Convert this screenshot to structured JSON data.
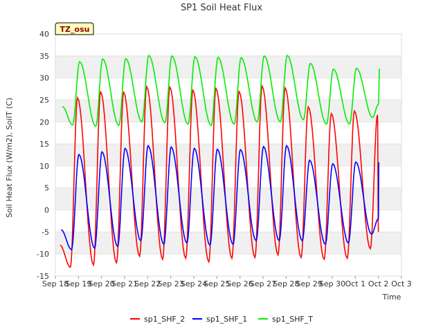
{
  "chart_data": {
    "type": "line",
    "title": "SP1 Soil Heat Flux",
    "xlabel": "Time",
    "ylabel": "Soil Heat Flux (W/m2), SoilT (C)",
    "site_label": "TZ_osu",
    "ylim": [
      -15,
      40
    ],
    "y_ticks": [
      -15,
      -10,
      -5,
      0,
      5,
      10,
      15,
      20,
      25,
      30,
      35,
      40
    ],
    "xlim": [
      0,
      15
    ],
    "x_ticks": [
      0,
      1,
      2,
      3,
      4,
      5,
      6,
      7,
      8,
      9,
      10,
      11,
      12,
      13,
      14,
      15
    ],
    "x_tick_labels": [
      "Sep 18",
      "Sep 19",
      "Sep 20",
      "Sep 21",
      "Sep 22",
      "Sep 23",
      "Sep 24",
      "Sep 25",
      "Sep 26",
      "Sep 27",
      "Sep 28",
      "Sep 29",
      "Sep 30",
      "Oct 1",
      "Oct 2",
      "Oct 3"
    ],
    "grid": "horizontal bands",
    "legend_position": "bottom",
    "series": [
      {
        "name": "sp1_SHF_2",
        "color": "#ff0000",
        "peak_x": [
          0.96,
          1.96,
          2.96,
          3.96,
          4.96,
          5.96,
          6.96,
          7.96,
          8.96,
          9.96,
          10.96,
          11.96,
          12.96,
          13.96
        ],
        "peaks": [
          25.5,
          26.8,
          26.7,
          28.0,
          27.9,
          27.2,
          27.6,
          26.9,
          28.1,
          27.7,
          23.4,
          21.9,
          22.5,
          21.6
        ],
        "trough_x": [
          0.2,
          0.65,
          1.65,
          2.65,
          3.65,
          4.65,
          5.65,
          6.65,
          7.65,
          8.65,
          9.65,
          10.65,
          11.65,
          12.65,
          13.65,
          14.0
        ],
        "troughs": [
          -8.0,
          -13.0,
          -12.5,
          -12.0,
          -10.5,
          -11.2,
          -11.0,
          -11.8,
          -11.0,
          -10.8,
          -10.2,
          -10.8,
          -11.2,
          -11.0,
          -8.8,
          -5.0
        ],
        "start": -8.0,
        "end": -5.0
      },
      {
        "name": "sp1_SHF_1",
        "color": "#0000ff",
        "peak_x": [
          1.02,
          2.02,
          3.02,
          4.02,
          5.02,
          6.02,
          7.02,
          8.02,
          9.02,
          10.02,
          11.02,
          12.02,
          13.02,
          14.02
        ],
        "peaks": [
          12.6,
          13.2,
          14.0,
          14.6,
          14.3,
          14.0,
          13.8,
          13.7,
          14.4,
          14.6,
          11.3,
          10.5,
          10.9,
          10.8
        ],
        "trough_x": [
          0.25,
          0.7,
          1.7,
          2.7,
          3.7,
          4.7,
          5.7,
          6.7,
          7.7,
          8.7,
          9.7,
          10.7,
          11.7,
          12.7,
          13.7,
          14.0
        ],
        "troughs": [
          -4.5,
          -9.0,
          -8.7,
          -8.3,
          -7.0,
          -7.8,
          -7.5,
          -8.0,
          -7.8,
          -7.0,
          -7.0,
          -7.0,
          -7.8,
          -7.5,
          -5.5,
          -2.0
        ],
        "start": -4.5,
        "end": -2.0
      },
      {
        "name": "sp1_SHF_T",
        "color": "#00ee00",
        "peak_x": [
          1.05,
          2.05,
          3.05,
          4.05,
          5.05,
          6.05,
          7.05,
          8.05,
          9.05,
          10.05,
          11.05,
          12.05,
          13.05,
          14.05
        ],
        "peaks": [
          33.7,
          34.3,
          34.4,
          35.1,
          35.0,
          34.8,
          34.7,
          34.6,
          35.0,
          35.1,
          33.3,
          32.0,
          32.2,
          32.1
        ],
        "trough_x": [
          0.3,
          0.75,
          1.75,
          2.75,
          3.75,
          4.75,
          5.75,
          6.75,
          7.75,
          8.75,
          9.75,
          10.75,
          11.75,
          12.75,
          13.75,
          14.0
        ],
        "troughs": [
          23.5,
          19.3,
          19.0,
          19.2,
          20.0,
          19.8,
          19.5,
          19.2,
          19.5,
          20.0,
          20.0,
          20.5,
          19.5,
          19.5,
          21.0,
          24.0
        ],
        "start": 23.5,
        "end": 24.0
      }
    ]
  }
}
